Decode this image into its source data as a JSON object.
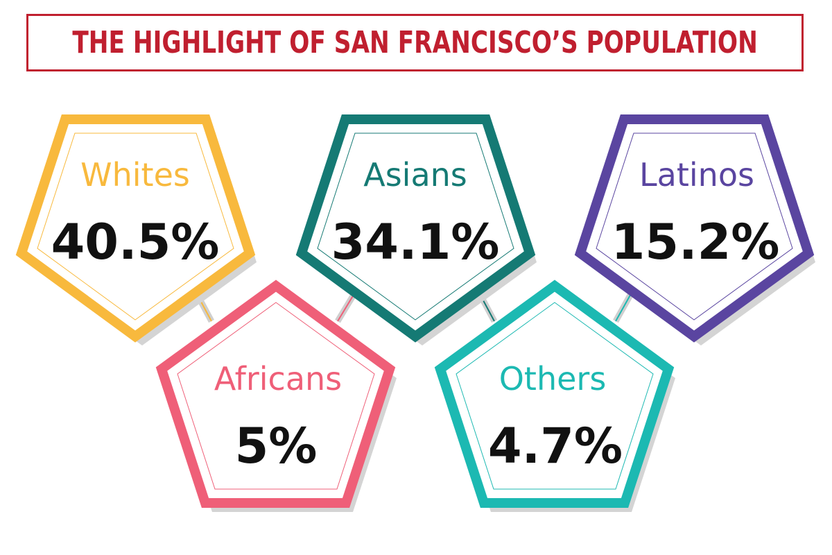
{
  "title": "THE HIGHLIGHT OF SAN FRANCISCO’S POPULATION",
  "colors": {
    "title": "#c01f2f",
    "whites": "#f8b93d",
    "asians": "#157a74",
    "latinos": "#5a45a0",
    "africans": "#ef5f78",
    "others": "#1cb9b2",
    "shadow": "#d4d4d4"
  },
  "groups": [
    {
      "label": "Whites",
      "value": "40.5%",
      "percent": 40.5
    },
    {
      "label": "Asians",
      "value": "34.1%",
      "percent": 34.1
    },
    {
      "label": "Latinos",
      "value": "15.2%",
      "percent": 15.2
    },
    {
      "label": "Africans",
      "value": "5%",
      "percent": 5
    },
    {
      "label": "Others",
      "value": "4.7%",
      "percent": 4.7
    }
  ]
}
